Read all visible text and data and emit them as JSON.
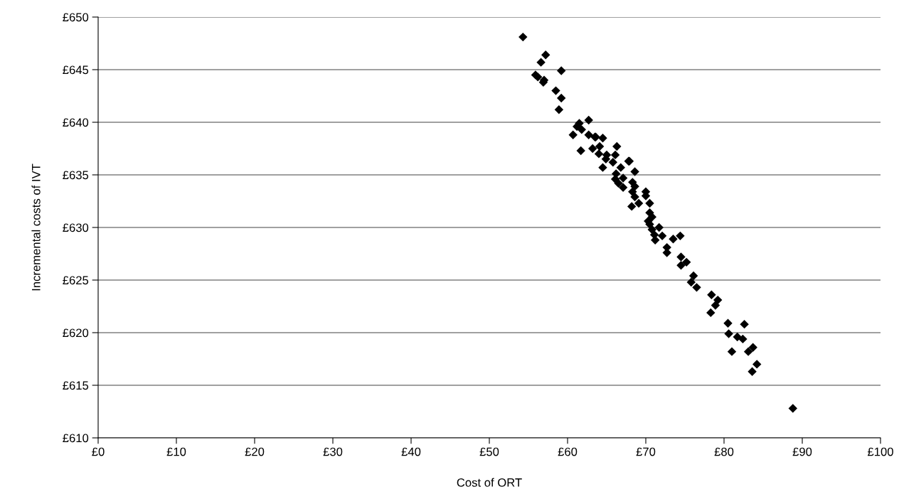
{
  "chart_data": {
    "type": "scatter",
    "xlabel": "Cost of ORT",
    "ylabel": "Incremental costs of IVT",
    "x": [
      54.3,
      57.2,
      56.6,
      59.2,
      55.9,
      56.2,
      57.0,
      56.9,
      58.5,
      59.2,
      58.9,
      62.7,
      61.5,
      61.2,
      61.8,
      60.7,
      62.7,
      63.5,
      64.5,
      61.7,
      63.2,
      64.1,
      66.3,
      64.0,
      65.0,
      66.1,
      67.8,
      63.6,
      64.9,
      65.8,
      67.9,
      64.5,
      66.8,
      68.6,
      66.2,
      66.1,
      67.1,
      66.5,
      68.3,
      67.1,
      68.6,
      68.3,
      70.0,
      68.6,
      70.0,
      69.1,
      70.5,
      68.2,
      70.5,
      70.8,
      70.3,
      70.5,
      71.7,
      70.8,
      72.1,
      71.1,
      74.4,
      73.5,
      71.2,
      72.7,
      72.7,
      74.5,
      75.2,
      74.5,
      76.1,
      75.8,
      76.5,
      78.4,
      79.2,
      78.9,
      78.3,
      80.5,
      82.6,
      80.6,
      81.7,
      82.4,
      83.7,
      81.0,
      83.1,
      84.2,
      83.6,
      88.8
    ],
    "values": [
      648.1,
      646.4,
      645.7,
      644.9,
      644.5,
      644.3,
      644.0,
      643.8,
      643.0,
      642.3,
      641.2,
      640.2,
      639.9,
      639.6,
      639.3,
      638.8,
      638.8,
      638.6,
      638.5,
      637.3,
      637.5,
      637.7,
      637.7,
      637.0,
      636.9,
      636.9,
      636.3,
      638.6,
      636.5,
      636.2,
      636.3,
      635.7,
      635.7,
      635.3,
      635.1,
      634.6,
      634.7,
      634.2,
      634.3,
      633.8,
      633.9,
      633.4,
      633.4,
      632.9,
      633.0,
      632.3,
      632.3,
      632.0,
      631.4,
      631.0,
      630.6,
      630.3,
      630.0,
      629.8,
      629.2,
      629.3,
      629.2,
      628.9,
      628.8,
      628.1,
      627.6,
      627.2,
      626.7,
      626.4,
      625.4,
      624.8,
      624.3,
      623.6,
      623.1,
      622.6,
      621.9,
      620.9,
      620.8,
      619.9,
      619.6,
      619.4,
      618.6,
      618.2,
      618.2,
      617.0,
      616.3,
      612.8
    ],
    "color": "#000000",
    "marker": "diamond",
    "grid": "y",
    "xlim": [
      0,
      100
    ],
    "xticks": [
      {
        "value": 0,
        "label": "£0"
      },
      {
        "value": 10,
        "label": "£10"
      },
      {
        "value": 20,
        "label": "£20"
      },
      {
        "value": 30,
        "label": "£30"
      },
      {
        "value": 40,
        "label": "£40"
      },
      {
        "value": 50,
        "label": "£50"
      },
      {
        "value": 60,
        "label": "£60"
      },
      {
        "value": 70,
        "label": "£70"
      },
      {
        "value": 80,
        "label": "£80"
      },
      {
        "value": 90,
        "label": "£90"
      },
      {
        "value": 100,
        "label": "£100"
      }
    ],
    "ylim": [
      610,
      650
    ],
    "yticks": [
      {
        "value": 610,
        "label": "£610"
      },
      {
        "value": 615,
        "label": "£615"
      },
      {
        "value": 620,
        "label": "£620"
      },
      {
        "value": 625,
        "label": "£625"
      },
      {
        "value": 630,
        "label": "£630"
      },
      {
        "value": 635,
        "label": "£635"
      },
      {
        "value": 640,
        "label": "£640"
      },
      {
        "value": 645,
        "label": "£645"
      },
      {
        "value": 650,
        "label": "£650"
      }
    ]
  }
}
